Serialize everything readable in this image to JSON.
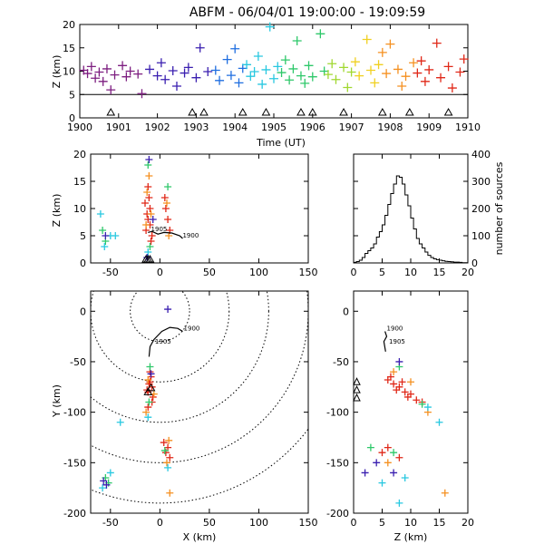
{
  "chart_data": [
    {
      "id": "time_height",
      "type": "scatter",
      "title": "ABFM - 06/04/01 19:00:00 - 19:09:59",
      "xlabel": "Time (UT)",
      "ylabel": "Z (km)",
      "xlim": [
        1900,
        1910
      ],
      "ylim": [
        0,
        20
      ],
      "x_ticks": [
        "1900",
        "1901",
        "1902",
        "1903",
        "1904",
        "1905",
        "1906",
        "1907",
        "1908",
        "1909",
        "1910"
      ],
      "y_ticks": [
        "0",
        "5",
        "10",
        "15",
        "20"
      ],
      "reference_line_z": 5,
      "triangle_times": [
        1900.8,
        1902.9,
        1903.2,
        1904.2,
        1904.8,
        1905.7,
        1906.0,
        1906.8,
        1907.8,
        1908.5,
        1909.5
      ],
      "series": [
        {
          "color": "#7d1e80",
          "points": [
            [
              1900.1,
              10.2
            ],
            [
              1900.2,
              9.5
            ],
            [
              1900.3,
              11.0
            ],
            [
              1900.4,
              8.5
            ],
            [
              1900.5,
              9.8
            ],
            [
              1900.6,
              7.8
            ],
            [
              1900.7,
              10.5
            ],
            [
              1900.8,
              6.0
            ],
            [
              1900.9,
              9.2
            ],
            [
              1901.1,
              11.2
            ],
            [
              1901.2,
              8.8
            ],
            [
              1901.3,
              10.0
            ],
            [
              1901.5,
              9.4
            ],
            [
              1901.6,
              5.2
            ]
          ]
        },
        {
          "color": "#3a1fb0",
          "points": [
            [
              1901.8,
              10.4
            ],
            [
              1902.0,
              9.0
            ],
            [
              1902.1,
              11.8
            ],
            [
              1902.2,
              8.2
            ],
            [
              1902.4,
              10.1
            ],
            [
              1902.5,
              6.8
            ],
            [
              1902.7,
              9.6
            ],
            [
              1902.8,
              10.8
            ],
            [
              1903.0,
              8.6
            ],
            [
              1903.1,
              15.0
            ],
            [
              1903.3,
              9.9
            ]
          ]
        },
        {
          "color": "#1f6ee0",
          "points": [
            [
              1903.5,
              10.2
            ],
            [
              1903.6,
              8.0
            ],
            [
              1903.8,
              12.5
            ],
            [
              1903.9,
              9.1
            ],
            [
              1904.0,
              14.8
            ],
            [
              1904.1,
              7.5
            ],
            [
              1904.2,
              10.6
            ]
          ]
        },
        {
          "color": "#28c8e0",
          "points": [
            [
              1904.3,
              11.4
            ],
            [
              1904.4,
              8.9
            ],
            [
              1904.5,
              9.9
            ],
            [
              1904.6,
              13.2
            ],
            [
              1904.7,
              7.2
            ],
            [
              1904.8,
              10.3
            ],
            [
              1904.9,
              19.5
            ],
            [
              1905.0,
              8.4
            ],
            [
              1905.1,
              11.0
            ]
          ]
        },
        {
          "color": "#2ec86a",
          "points": [
            [
              1905.2,
              9.7
            ],
            [
              1905.3,
              12.4
            ],
            [
              1905.4,
              8.1
            ],
            [
              1905.5,
              10.5
            ],
            [
              1905.6,
              16.5
            ],
            [
              1905.7,
              9.0
            ],
            [
              1905.8,
              7.4
            ],
            [
              1905.9,
              11.2
            ],
            [
              1906.0,
              8.8
            ],
            [
              1906.2,
              18.0
            ],
            [
              1906.3,
              10.0
            ]
          ]
        },
        {
          "color": "#a0d830",
          "points": [
            [
              1906.4,
              9.3
            ],
            [
              1906.5,
              11.6
            ],
            [
              1906.6,
              8.2
            ],
            [
              1906.8,
              10.8
            ],
            [
              1906.9,
              6.5
            ],
            [
              1907.0,
              9.8
            ]
          ]
        },
        {
          "color": "#f0d020",
          "points": [
            [
              1907.1,
              12.0
            ],
            [
              1907.2,
              9.0
            ],
            [
              1907.4,
              16.8
            ],
            [
              1907.5,
              10.2
            ],
            [
              1907.6,
              7.5
            ],
            [
              1907.7,
              11.4
            ]
          ]
        },
        {
          "color": "#f59020",
          "points": [
            [
              1907.8,
              14.0
            ],
            [
              1907.9,
              9.5
            ],
            [
              1908.0,
              15.8
            ],
            [
              1908.2,
              10.4
            ],
            [
              1908.3,
              6.8
            ],
            [
              1908.4,
              8.9
            ],
            [
              1908.6,
              11.8
            ]
          ]
        },
        {
          "color": "#e02818",
          "points": [
            [
              1908.7,
              9.6
            ],
            [
              1908.8,
              12.2
            ],
            [
              1908.9,
              7.8
            ],
            [
              1909.0,
              10.3
            ],
            [
              1909.2,
              16.0
            ],
            [
              1909.3,
              8.6
            ],
            [
              1909.5,
              11.0
            ],
            [
              1909.6,
              6.4
            ],
            [
              1909.8,
              9.8
            ],
            [
              1909.9,
              12.6
            ]
          ]
        }
      ],
      "track_line": [
        [
          1900.0,
          5.0
        ],
        [
          1910.0,
          5.6
        ]
      ]
    },
    {
      "id": "x_z",
      "type": "scatter",
      "xlim": [
        -70,
        150
      ],
      "ylim": [
        0,
        20
      ],
      "ylabel": "Z (km)",
      "x_ticks": [
        "-50",
        "0",
        "50",
        "100",
        "150"
      ],
      "y_ticks": [
        "0",
        "5",
        "10",
        "15",
        "20"
      ],
      "annotations": [
        "1905",
        "1900"
      ],
      "series": [
        {
          "color": "#e02818",
          "points": [
            [
              -12,
              8
            ],
            [
              -10,
              10
            ],
            [
              -14,
              6
            ],
            [
              -11,
              12
            ],
            [
              -9,
              4
            ],
            [
              -13,
              9
            ],
            [
              -12,
              14
            ],
            [
              -10,
              7
            ],
            [
              6,
              10
            ],
            [
              8,
              8
            ],
            [
              10,
              6
            ],
            [
              5,
              12
            ],
            [
              -8,
              5
            ],
            [
              -15,
              11
            ]
          ]
        },
        {
          "color": "#f59020",
          "points": [
            [
              -13,
              13
            ],
            [
              -11,
              16
            ],
            [
              -9,
              9
            ],
            [
              7,
              11
            ],
            [
              9,
              5
            ],
            [
              -14,
              7
            ]
          ]
        },
        {
          "color": "#2ec86a",
          "points": [
            [
              -12,
              18
            ],
            [
              -10,
              3
            ],
            [
              -58,
              6
            ],
            [
              -55,
              4
            ],
            [
              8,
              14
            ]
          ]
        },
        {
          "color": "#28c8e0",
          "points": [
            [
              -50,
              5
            ],
            [
              -60,
              9
            ],
            [
              -56,
              3
            ],
            [
              -45,
              5
            ],
            [
              -12,
              2
            ]
          ]
        },
        {
          "color": "#3a1fb0",
          "points": [
            [
              -55,
              5
            ],
            [
              -13,
              1
            ],
            [
              -7,
              8
            ],
            [
              -11,
              19
            ]
          ]
        }
      ],
      "track_line": [
        [
          -12,
          5.6
        ],
        [
          -8,
          5.8
        ],
        [
          -2,
          5.3
        ],
        [
          4,
          5.6
        ],
        [
          12,
          5.5
        ],
        [
          20,
          5.0
        ],
        [
          23,
          4.5
        ]
      ]
    },
    {
      "id": "z_histogram",
      "type": "bar",
      "xlim": [
        0,
        20
      ],
      "ylim": [
        0,
        400
      ],
      "ylabel": "number of sources",
      "x_ticks": [
        "0",
        "5",
        "10",
        "15",
        "20"
      ],
      "y_ticks": [
        "0",
        "100",
        "200",
        "300",
        "400"
      ],
      "bins_start": 0,
      "bin_width": 0.5,
      "values": [
        2,
        5,
        10,
        20,
        35,
        45,
        55,
        70,
        95,
        115,
        140,
        175,
        215,
        255,
        290,
        320,
        315,
        290,
        250,
        210,
        165,
        125,
        90,
        70,
        55,
        40,
        28,
        20,
        15,
        12,
        10,
        8,
        6,
        5,
        4,
        3,
        3,
        2,
        1,
        1
      ]
    },
    {
      "id": "x_y",
      "type": "scatter",
      "xlabel": "X (km)",
      "ylabel": "Y (km)",
      "xlim": [
        -70,
        150
      ],
      "ylim": [
        -200,
        20
      ],
      "x_ticks": [
        "-50",
        "0",
        "50",
        "100",
        "150"
      ],
      "y_ticks": [
        "-200",
        "-150",
        "-100",
        "-50",
        "0"
      ],
      "annotations": [
        "1900",
        "1905"
      ],
      "range_ring_radii": [
        30,
        70,
        110,
        150,
        190
      ],
      "series": [
        {
          "color": "#e02818",
          "points": [
            [
              -10,
              -70
            ],
            [
              -8,
              -75
            ],
            [
              -12,
              -80
            ],
            [
              -9,
              -65
            ],
            [
              -11,
              -72
            ],
            [
              -7,
              -85
            ],
            [
              -13,
              -78
            ],
            [
              -10,
              -60
            ],
            [
              6,
              -140
            ],
            [
              8,
              -135
            ],
            [
              10,
              -145
            ],
            [
              4,
              -130
            ],
            [
              -8,
              -90
            ],
            [
              -12,
              -95
            ]
          ]
        },
        {
          "color": "#f59020",
          "points": [
            [
              -12,
              -68
            ],
            [
              -6,
              -82
            ],
            [
              7,
              -150
            ],
            [
              9,
              -128
            ],
            [
              -14,
              -100
            ],
            [
              10,
              -180
            ]
          ]
        },
        {
          "color": "#2ec86a",
          "points": [
            [
              -10,
              -55
            ],
            [
              -11,
              -90
            ],
            [
              5,
              -138
            ],
            [
              -52,
              -170
            ],
            [
              -55,
              -165
            ]
          ]
        },
        {
          "color": "#28c8e0",
          "points": [
            [
              -40,
              -110
            ],
            [
              -12,
              -105
            ],
            [
              -58,
              -175
            ],
            [
              -50,
              -160
            ],
            [
              8,
              -155
            ]
          ]
        },
        {
          "color": "#3a1fb0",
          "points": [
            [
              8,
              2
            ],
            [
              -9,
              -62
            ],
            [
              -57,
              -168
            ],
            [
              -54,
              -172
            ]
          ]
        }
      ],
      "track_line": [
        [
          23,
          -20
        ],
        [
          18,
          -17
        ],
        [
          10,
          -16
        ],
        [
          2,
          -20
        ],
        [
          -6,
          -28
        ],
        [
          -10,
          -35
        ],
        [
          -11,
          -45
        ]
      ]
    },
    {
      "id": "z_y",
      "type": "scatter",
      "xlabel": "Z (km)",
      "xlim": [
        0,
        20
      ],
      "ylim": [
        -200,
        20
      ],
      "x_ticks": [
        "0",
        "5",
        "10",
        "15",
        "20"
      ],
      "y_ticks": [
        "-200",
        "-150",
        "-100",
        "-50",
        "0"
      ],
      "annotations": [
        "1900",
        "1905"
      ],
      "series": [
        {
          "color": "#e02818",
          "points": [
            [
              6,
              -68
            ],
            [
              7,
              -72
            ],
            [
              8,
              -75
            ],
            [
              9,
              -80
            ],
            [
              6.5,
              -65
            ],
            [
              7.5,
              -78
            ],
            [
              8.5,
              -70
            ],
            [
              10,
              -82
            ],
            [
              11,
              -88
            ],
            [
              9.5,
              -85
            ],
            [
              5,
              -140
            ],
            [
              8,
              -145
            ],
            [
              6,
              -135
            ],
            [
              12,
              -90
            ]
          ]
        },
        {
          "color": "#f59020",
          "points": [
            [
              7,
              -60
            ],
            [
              10,
              -70
            ],
            [
              13,
              -100
            ],
            [
              6,
              -150
            ],
            [
              16,
              -180
            ]
          ]
        },
        {
          "color": "#2ec86a",
          "points": [
            [
              8,
              -55
            ],
            [
              12,
              -92
            ],
            [
              7,
              -140
            ],
            [
              3,
              -135
            ]
          ]
        },
        {
          "color": "#28c8e0",
          "points": [
            [
              13,
              -95
            ],
            [
              15,
              -110
            ],
            [
              9,
              -165
            ],
            [
              5,
              -170
            ],
            [
              8,
              -190
            ]
          ]
        },
        {
          "color": "#3a1fb0",
          "points": [
            [
              8,
              -50
            ],
            [
              4,
              -150
            ],
            [
              2,
              -160
            ],
            [
              7,
              -160
            ]
          ]
        }
      ],
      "track_line": [
        [
          5.5,
          -20
        ],
        [
          5.8,
          -25
        ],
        [
          5.3,
          -30
        ],
        [
          5.6,
          -40
        ]
      ]
    }
  ]
}
